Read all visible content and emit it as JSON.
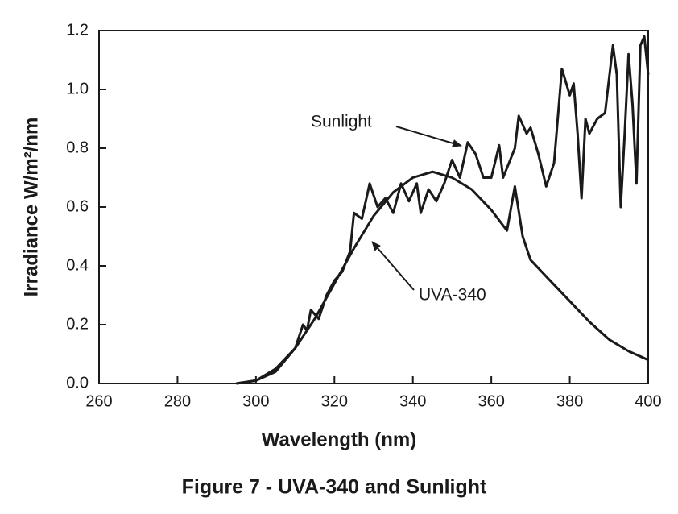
{
  "chart_data": {
    "type": "line",
    "caption": "Figure 7 - UVA-340 and Sunlight",
    "xlabel": "Wavelength (nm)",
    "ylabel": "Irradiance W/m²/nm",
    "xlim": [
      260,
      400
    ],
    "ylim": [
      0,
      1.2
    ],
    "xticks": [
      260,
      280,
      300,
      320,
      340,
      360,
      380,
      400
    ],
    "yticks": [
      {
        "value": 0,
        "label": "0.0"
      },
      0.2,
      0.4,
      0.6,
      0.8,
      {
        "value": 1,
        "label": "1.0"
      },
      1.2
    ],
    "annotations": [
      "Sunlight",
      "UVA-340"
    ],
    "series": [
      {
        "name": "Sunlight",
        "color": "#1a1a1a",
        "x": [
          295,
          300,
          305,
          310,
          312,
          313,
          314,
          316,
          318,
          320,
          322,
          324,
          325,
          327,
          329,
          331,
          333,
          335,
          337,
          339,
          341,
          342,
          344,
          346,
          348,
          350,
          352,
          354,
          356,
          358,
          360,
          362,
          363,
          366,
          367,
          369,
          370,
          372,
          374,
          376,
          378,
          380,
          381,
          382,
          383,
          384,
          385,
          387,
          389,
          391,
          392,
          393,
          394,
          395,
          396,
          397,
          398,
          399,
          400
        ],
        "values": [
          0,
          0.01,
          0.04,
          0.12,
          0.2,
          0.18,
          0.25,
          0.22,
          0.3,
          0.35,
          0.38,
          0.45,
          0.58,
          0.56,
          0.68,
          0.6,
          0.63,
          0.58,
          0.68,
          0.62,
          0.68,
          0.58,
          0.66,
          0.62,
          0.68,
          0.76,
          0.7,
          0.82,
          0.78,
          0.7,
          0.7,
          0.81,
          0.7,
          0.8,
          0.91,
          0.85,
          0.87,
          0.78,
          0.67,
          0.75,
          1.07,
          0.98,
          1.02,
          0.85,
          0.63,
          0.9,
          0.85,
          0.9,
          0.92,
          1.15,
          1.05,
          0.6,
          0.85,
          1.12,
          0.95,
          0.68,
          1.15,
          1.18,
          1.05
        ]
      },
      {
        "name": "UVA-340",
        "color": "#1a1a1a",
        "x": [
          295,
          300,
          305,
          310,
          315,
          320,
          325,
          330,
          335,
          340,
          345,
          350,
          355,
          360,
          364,
          366,
          368,
          370,
          375,
          380,
          385,
          390,
          395,
          400
        ],
        "values": [
          0,
          0.01,
          0.05,
          0.12,
          0.22,
          0.34,
          0.46,
          0.57,
          0.65,
          0.7,
          0.72,
          0.7,
          0.66,
          0.59,
          0.52,
          0.67,
          0.5,
          0.42,
          0.35,
          0.28,
          0.21,
          0.15,
          0.11,
          0.08
        ]
      }
    ]
  }
}
